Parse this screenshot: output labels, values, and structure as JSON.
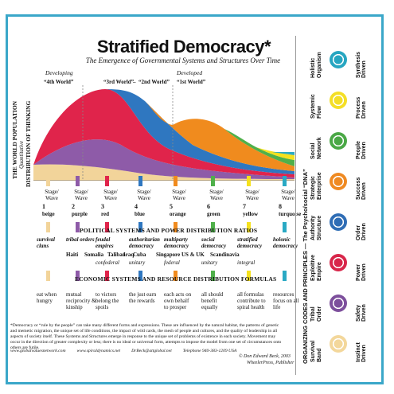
{
  "title": "Stratified Democracy*",
  "subtitle": "The Emergence of Governmental Systems and Structures Over Time",
  "developing": "Developing",
  "developed": "Developed",
  "worlds": [
    "“4th World”",
    "“3rd World”",
    "“2nd World”",
    "“1st World”"
  ],
  "world_separator": "–",
  "left_axis": [
    "THE WORLD POPULATION",
    "Quantitative",
    "DISTRIBUTION OF THINKING"
  ],
  "stage_label": "Stage/ Wave",
  "stages": [
    {
      "n": "1",
      "c": "beige",
      "color": "#f2d49a"
    },
    {
      "n": "2",
      "c": "purple",
      "color": "#8e5ba8"
    },
    {
      "n": "3",
      "c": "red",
      "color": "#e0244b"
    },
    {
      "n": "4",
      "c": "blue",
      "color": "#2f77c0"
    },
    {
      "n": "5",
      "c": "orange",
      "color": "#f08b1e"
    },
    {
      "n": "6",
      "c": "green",
      "color": "#4fb04a"
    },
    {
      "n": "7",
      "c": "yellow",
      "color": "#f5e11d"
    },
    {
      "n": "8",
      "c": "turquoise",
      "color": "#2aa9c4"
    }
  ],
  "political_title": "POLITICAL SYSTEMS AND POWER DISTRIBUTION RATIOS",
  "political": [
    "survival clans",
    "tribal orders",
    "feudal empires",
    "authoritarian democracy",
    "multiparty democracy",
    "social democracy",
    "stratified democracy",
    "holonic democracy"
  ],
  "countries": [
    "Haiti",
    "Somalia",
    "Taliban",
    "Iraq",
    "Cuba",
    "Singapore",
    "US & UK",
    "Scandinavia"
  ],
  "sub": [
    "confederal",
    "unitary",
    "federal",
    "unitary",
    "integral"
  ],
  "economic_title": "ECONOMIC SYSTEMS AND RESOURCE DISTRIBUTION FORMULAS",
  "economic": [
    "eat when hungry",
    "mutual reciprocity & kinship",
    "to victors belong the spoils",
    "the just earn the rewards",
    "each acts on own behalf to prosper",
    "all should benefit equally",
    "all formulas contribute to spiral health",
    "resources focus on all life"
  ],
  "footnote": "*Democracy or “rule by the people” can take many different forms and expressions. These are influenced by the natural habitat, the patterns of genetic and memetic migration, the unique set of life conditions, the impact of wild cards, the mesh of people and cultures, and the quality of leadership in all aspects of society itself. These Systems and Structures emerge in response to the unique set of problems of existence in each society. Movement may occur in the direction of greater complexity or less; there is no ideal or universal form, attempts to impose the model from one set of circumstances onto others are futile.",
  "links": [
    "www.globalvaluesnetwork.com",
    "www.spiraldynamics.net",
    "DrBeck@attglobal.net",
    "Telephone 940-383-1209  USA"
  ],
  "credit1": "© Don Edward Beck, 2003",
  "credit2": "WheelerPress, Publisher",
  "right_title": "ORGANIZING CODES AND PRINCIPLES — The Psycho/social “DNA”",
  "right_codes": [
    {
      "a": "Survival",
      "b": "Band",
      "c": "Instinct Driven",
      "color": "#f3d79b"
    },
    {
      "a": "Tribal",
      "b": "Order",
      "c": "Safety Driven",
      "color": "#7d4f9c"
    },
    {
      "a": "Exploitive",
      "b": "Empire",
      "c": "Power Driven",
      "color": "#d8264a"
    },
    {
      "a": "Authority",
      "b": "Structure",
      "c": "Order Driven",
      "color": "#2f6db5"
    },
    {
      "a": "Strategic",
      "b": "Enterprise",
      "c": "Success Driven",
      "color": "#ef8a22"
    },
    {
      "a": "Social",
      "b": "Network",
      "c": "People Driven",
      "color": "#4aa846"
    },
    {
      "a": "Systemic",
      "b": "Flow",
      "c": "Process Driven",
      "color": "#f4df26"
    },
    {
      "a": "Holistic",
      "b": "Organism",
      "c": "Synthesis Driven",
      "color": "#27a6c1"
    }
  ]
}
